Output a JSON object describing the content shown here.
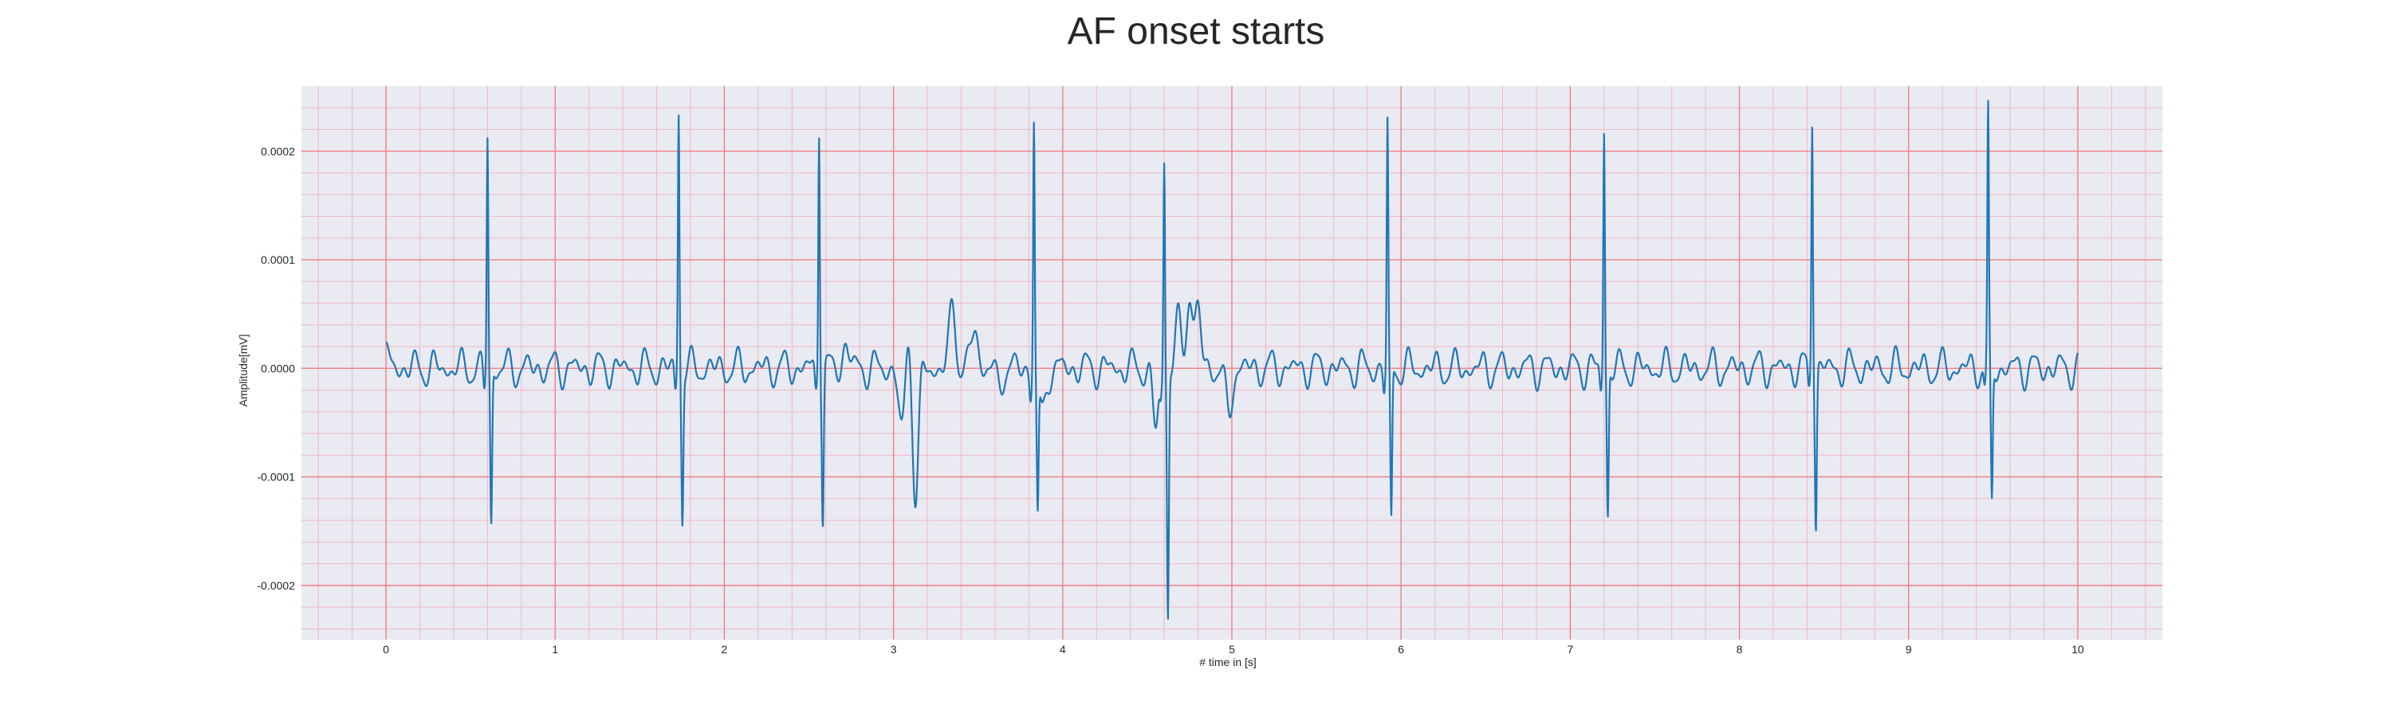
{
  "chart_data": {
    "type": "line",
    "title": "AF onset starts",
    "xlabel": "# time in [s]",
    "ylabel": "Amplitude[mV]",
    "xlim": [
      -0.5,
      10.5
    ],
    "ylim": [
      -0.00025,
      0.00026
    ],
    "x_ticks": [
      0,
      1,
      2,
      3,
      4,
      5,
      6,
      7,
      8,
      9,
      10
    ],
    "x_tick_labels": [
      "0",
      "1",
      "2",
      "3",
      "4",
      "5",
      "6",
      "7",
      "8",
      "9",
      "10"
    ],
    "y_ticks": [
      -0.0002,
      -0.0001,
      0.0,
      0.0001,
      0.0002
    ],
    "y_tick_labels": [
      "-0.0002",
      "-0.0001",
      "0.0000",
      "0.0001",
      "0.0002"
    ],
    "grid": true,
    "minor_grid": true,
    "background_color": "#eaeaf2",
    "major_grid_color": "#f08080",
    "minor_grid_color": "#f4b6c2",
    "series": [
      {
        "color": "#1f77b4",
        "baseline_start": 3e-05,
        "r_peaks": [
          {
            "t": 0.6,
            "r": 0.000215,
            "s": -0.000145
          },
          {
            "t": 1.73,
            "r": 0.00024,
            "s": -0.000135
          },
          {
            "t": 2.56,
            "r": 0.00023,
            "s": -0.000137
          },
          {
            "t": 3.83,
            "r": 0.00023,
            "s": -0.000125
          },
          {
            "t": 4.6,
            "r": 0.000195,
            "s": -0.000225
          },
          {
            "t": 5.92,
            "r": 0.000222,
            "s": -0.000145
          },
          {
            "t": 7.2,
            "r": 0.000222,
            "s": -0.000136
          },
          {
            "t": 8.43,
            "r": 0.000236,
            "s": -0.00014
          },
          {
            "t": 9.47,
            "r": 0.000232,
            "s": -0.000128
          }
        ],
        "events": [
          {
            "t": 2.72,
            "a": 2.2e-05
          },
          {
            "t": 3.05,
            "a": -6.5e-05
          },
          {
            "t": 3.09,
            "a": 4e-05
          },
          {
            "t": 3.13,
            "a": -0.00012
          },
          {
            "t": 3.35,
            "a": 6e-05
          },
          {
            "t": 3.48,
            "a": 4e-05
          },
          {
            "t": 3.62,
            "a": -1.5e-05
          },
          {
            "t": 3.88,
            "a": -4.5e-05
          },
          {
            "t": 4.55,
            "a": -5.5e-05
          },
          {
            "t": 4.68,
            "a": 4e-05
          },
          {
            "t": 4.75,
            "a": 7e-05
          },
          {
            "t": 4.8,
            "a": 5e-05
          },
          {
            "t": 4.98,
            "a": -4.5e-05
          }
        ]
      }
    ]
  }
}
